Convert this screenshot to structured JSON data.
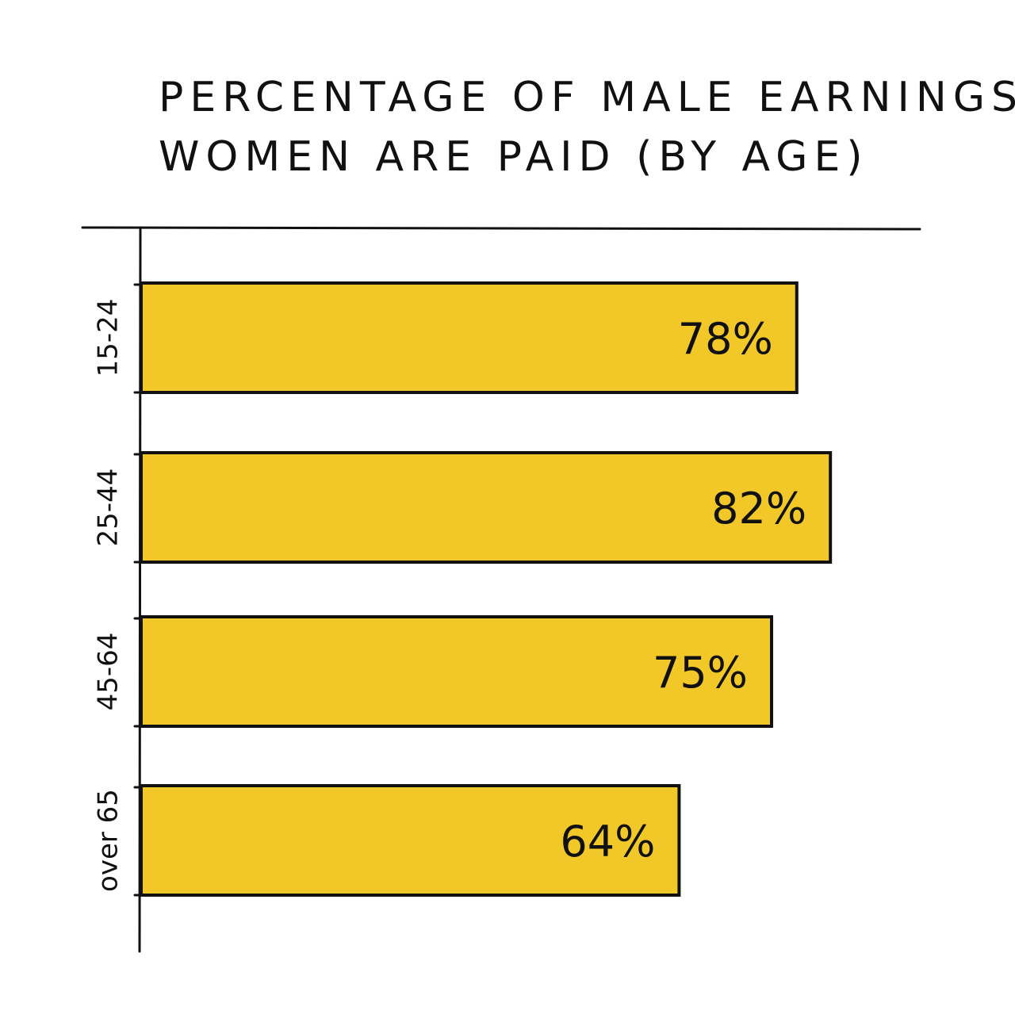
{
  "chart_data": {
    "type": "bar",
    "orientation": "horizontal",
    "title_lines": [
      "PERCENTAGE OF MALE EARNINGS",
      "WOMEN ARE PAID (BY AGE)"
    ],
    "categories": [
      "15-24",
      "25-44",
      "45-64",
      "over 65"
    ],
    "values": [
      78,
      82,
      75,
      64
    ],
    "value_labels": [
      "78%",
      "82%",
      "75%",
      "64%"
    ],
    "xlim": [
      0,
      100
    ],
    "bar_color": "#F2C828",
    "grid": false,
    "legend": "none"
  }
}
